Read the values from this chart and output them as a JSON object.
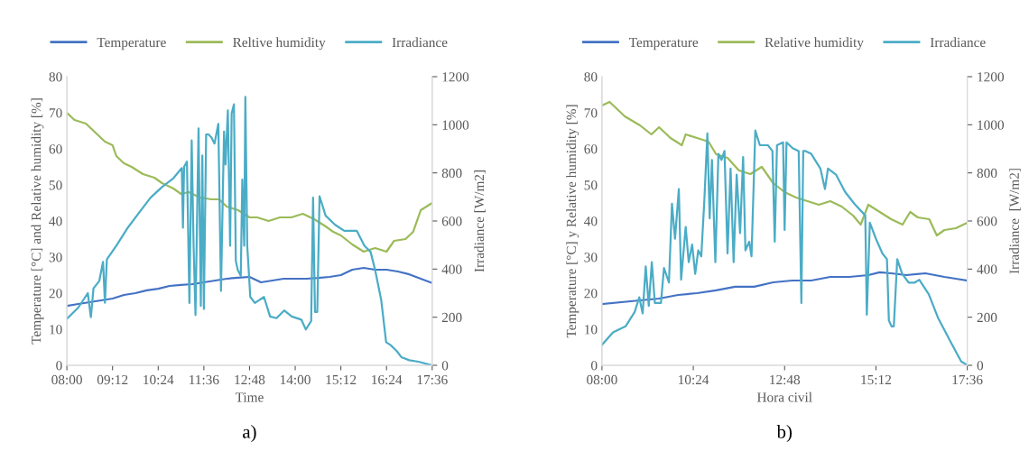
{
  "chart_data": [
    {
      "type": "line",
      "xlabel": "Time",
      "ylabel": "Temperature [°C] and Relative humidity [%]",
      "y2label": "Irradiance [W/m2]",
      "annotations": [
        "a)"
      ],
      "legend": "top",
      "grid": false,
      "marker": "none",
      "line_style": "solid",
      "xlim": [
        8,
        17.6
      ],
      "xticks": [
        {
          "value": 8,
          "label": "08:00"
        },
        {
          "value": 9.2,
          "label": "09:12"
        },
        {
          "value": 10.4,
          "label": "10:24"
        },
        {
          "value": 11.6,
          "label": "11:36"
        },
        {
          "value": 12.8,
          "label": "12:48"
        },
        {
          "value": 14,
          "label": "14:00"
        },
        {
          "value": 15.2,
          "label": "15:12"
        },
        {
          "value": 16.4,
          "label": "16:24"
        },
        {
          "value": 17.6,
          "label": "17:36"
        }
      ],
      "ylim": [
        0,
        80
      ],
      "yticks": [
        0,
        10,
        20,
        30,
        40,
        50,
        60,
        70,
        80
      ],
      "y2lim": [
        0,
        1200
      ],
      "y2ticks": [
        0,
        200,
        400,
        600,
        800,
        1000,
        1200
      ],
      "series": [
        {
          "name": "Temperature",
          "color": "#4472c4",
          "x": [
            8.0,
            8.3,
            8.6,
            8.9,
            9.2,
            9.5,
            9.8,
            10.1,
            10.4,
            10.7,
            11.0,
            11.3,
            11.6,
            11.9,
            12.2,
            12.5,
            12.8,
            13.1,
            13.4,
            13.7,
            14.0,
            14.3,
            14.6,
            14.9,
            15.2,
            15.5,
            15.8,
            16.1,
            16.4,
            16.7,
            17.0,
            17.3,
            17.6
          ],
          "values": [
            16.5,
            17.0,
            17.5,
            18.0,
            18.5,
            19.5,
            20.0,
            20.8,
            21.2,
            22.0,
            22.3,
            22.5,
            23.0,
            23.5,
            24.0,
            24.3,
            24.5,
            23.0,
            23.5,
            24.0,
            24.0,
            24.0,
            24.2,
            24.5,
            25.0,
            26.5,
            27.0,
            26.5,
            26.5,
            26.0,
            25.2,
            24.0,
            22.8
          ]
        },
        {
          "name": "Reltive humidity",
          "color": "#9bbb59",
          "x": [
            8.0,
            8.2,
            8.5,
            8.7,
            9.0,
            9.2,
            9.3,
            9.5,
            9.7,
            10.0,
            10.3,
            10.5,
            10.8,
            11.0,
            11.2,
            11.5,
            11.8,
            12.0,
            12.2,
            12.5,
            12.8,
            13.0,
            13.3,
            13.6,
            13.9,
            14.2,
            14.5,
            14.8,
            15.0,
            15.2,
            15.5,
            15.8,
            16.1,
            16.4,
            16.6,
            16.9,
            17.1,
            17.3,
            17.6
          ],
          "values": [
            70,
            68,
            67,
            65,
            62,
            61,
            58,
            56,
            55,
            53,
            52,
            50.5,
            49,
            47.5,
            48,
            46.5,
            46,
            46,
            44,
            43,
            41,
            41,
            40,
            41,
            41,
            42,
            40.5,
            38.5,
            37,
            36,
            33.5,
            31.5,
            32.5,
            31.5,
            34.5,
            35,
            37,
            43,
            45
          ]
        },
        {
          "name": "Irradiance",
          "color": "#4bacc6",
          "axis": "y2",
          "x": [
            8.0,
            8.3,
            8.55,
            8.63,
            8.7,
            8.85,
            8.95,
            9.0,
            9.05,
            9.3,
            9.6,
            9.9,
            10.2,
            10.5,
            10.8,
            11.02,
            11.05,
            11.08,
            11.155,
            11.22,
            11.28,
            11.33,
            11.38,
            11.46,
            11.52,
            11.56,
            11.6,
            11.66,
            11.72,
            11.8,
            11.88,
            11.98,
            12.05,
            12.13,
            12.17,
            12.23,
            12.29,
            12.33,
            12.39,
            12.44,
            12.49,
            12.57,
            12.61,
            12.66,
            12.69,
            12.74,
            12.82,
            12.94,
            13.18,
            13.34,
            13.51,
            13.71,
            13.91,
            14.16,
            14.28,
            14.42,
            14.47,
            14.52,
            14.58,
            14.64,
            14.8,
            15.05,
            15.29,
            15.62,
            15.82,
            15.98,
            16.1,
            16.26,
            16.39,
            16.51,
            16.67,
            16.79,
            17.0,
            17.24,
            17.6
          ],
          "values": [
            193,
            240,
            300,
            200,
            320,
            350,
            430,
            260,
            440,
            497,
            572,
            635,
            697,
            741,
            778,
            820,
            572,
            825,
            847,
            259,
            935,
            497,
            209,
            985,
            247,
            872,
            234,
            960,
            960,
            947,
            922,
            1004,
            309,
            972,
            835,
            1060,
            497,
            1047,
            1085,
            434,
            397,
            372,
            772,
            497,
            1116,
            497,
            284,
            259,
            284,
            203,
            196,
            228,
            203,
            190,
            149,
            184,
            697,
            222,
            222,
            703,
            622,
            584,
            559,
            559,
            497,
            472,
            397,
            272,
            96,
            84,
            59,
            34,
            21,
            15,
            0
          ]
        }
      ]
    },
    {
      "type": "line",
      "xlabel": "Hora civil",
      "ylabel": "Temperature [°C] y Relative humidity [%]",
      "y2label": "Irradiance  [W/m2]",
      "annotations": [
        "b)"
      ],
      "legend": "top",
      "grid": false,
      "marker": "none",
      "line_style": "solid",
      "xlim": [
        8,
        17.6
      ],
      "xticks": [
        {
          "value": 8,
          "label": "08:00"
        },
        {
          "value": 10.4,
          "label": "10:24"
        },
        {
          "value": 12.8,
          "label": "12:48"
        },
        {
          "value": 15.2,
          "label": "15:12"
        },
        {
          "value": 17.6,
          "label": "17:36"
        }
      ],
      "ylim": [
        0,
        80
      ],
      "yticks": [
        0,
        10,
        20,
        30,
        40,
        50,
        60,
        70,
        80
      ],
      "y2lim": [
        0,
        1200
      ],
      "y2ticks": [
        0,
        200,
        400,
        600,
        800,
        1000,
        1200
      ],
      "series": [
        {
          "name": "Temperature",
          "color": "#4472c4",
          "x": [
            8.0,
            9.0,
            9.5,
            10.0,
            10.5,
            11.0,
            11.5,
            12.0,
            12.5,
            13.0,
            13.5,
            14.0,
            14.5,
            15.0,
            15.3,
            15.6,
            16.0,
            16.5,
            17.0,
            17.3,
            17.6
          ],
          "values": [
            17,
            18,
            18.5,
            19.5,
            20,
            20.8,
            21.8,
            21.8,
            23,
            23.5,
            23.5,
            24.5,
            24.5,
            25,
            25.8,
            25.5,
            25,
            25.5,
            24.5,
            24,
            23.5
          ]
        },
        {
          "name": "Relative humidity",
          "color": "#9bbb59",
          "x": [
            8.0,
            8.2,
            8.4,
            8.6,
            9.0,
            9.3,
            9.5,
            9.8,
            10.1,
            10.2,
            10.5,
            10.8,
            11.0,
            11.3,
            11.6,
            11.9,
            12.2,
            12.5,
            12.8,
            13.1,
            13.4,
            13.7,
            14.0,
            14.3,
            14.6,
            14.8,
            15.0,
            15.3,
            15.6,
            15.9,
            16.1,
            16.3,
            16.6,
            16.8,
            17.0,
            17.3,
            17.6
          ],
          "values": [
            72,
            73,
            71,
            69,
            66.5,
            64,
            66,
            63,
            61,
            64,
            63,
            62,
            58.5,
            57.5,
            54,
            53,
            55,
            50.5,
            48,
            46.5,
            45.5,
            44.5,
            45.5,
            44,
            41.5,
            39,
            44.5,
            42.5,
            40.5,
            39,
            42.5,
            41,
            40.5,
            36,
            37.5,
            38,
            39.5
          ]
        },
        {
          "name": "Irradiance",
          "color": "#4bacc6",
          "axis": "y2",
          "x": [
            8.0,
            8.29,
            8.62,
            8.86,
            8.98,
            9.07,
            9.15,
            9.23,
            9.31,
            9.39,
            9.55,
            9.63,
            9.76,
            9.84,
            9.92,
            10.02,
            10.08,
            10.2,
            10.28,
            10.37,
            10.45,
            10.53,
            10.61,
            10.69,
            10.77,
            10.83,
            10.89,
            10.98,
            11.06,
            11.14,
            11.22,
            11.3,
            11.38,
            11.46,
            11.54,
            11.63,
            11.71,
            11.77,
            11.87,
            11.93,
            12.03,
            12.15,
            12.36,
            12.48,
            12.54,
            12.6,
            12.76,
            12.8,
            12.85,
            13.01,
            13.17,
            13.24,
            13.29,
            13.35,
            13.5,
            13.74,
            13.86,
            13.94,
            14.15,
            14.39,
            14.63,
            14.92,
            14.96,
            15.04,
            15.2,
            15.37,
            15.49,
            15.54,
            15.61,
            15.67,
            15.76,
            15.89,
            16.06,
            16.22,
            16.34,
            16.59,
            16.83,
            17.15,
            17.44,
            17.6
          ],
          "values": [
            85,
            137,
            162,
            222,
            283,
            216,
            411,
            247,
            429,
            259,
            259,
            405,
            344,
            672,
            526,
            733,
            356,
            575,
            429,
            502,
            380,
            478,
            453,
            684,
            964,
            611,
            854,
            429,
            879,
            854,
            891,
            465,
            818,
            429,
            793,
            550,
            866,
            478,
            514,
            453,
            976,
            915,
            915,
            891,
            514,
            915,
            927,
            563,
            927,
            903,
            891,
            259,
            891,
            891,
            879,
            818,
            733,
            818,
            793,
            721,
            672,
            623,
            210,
            593,
            526,
            465,
            441,
            186,
            162,
            162,
            441,
            380,
            344,
            344,
            356,
            295,
            198,
            101,
            16,
            1
          ]
        }
      ]
    }
  ]
}
